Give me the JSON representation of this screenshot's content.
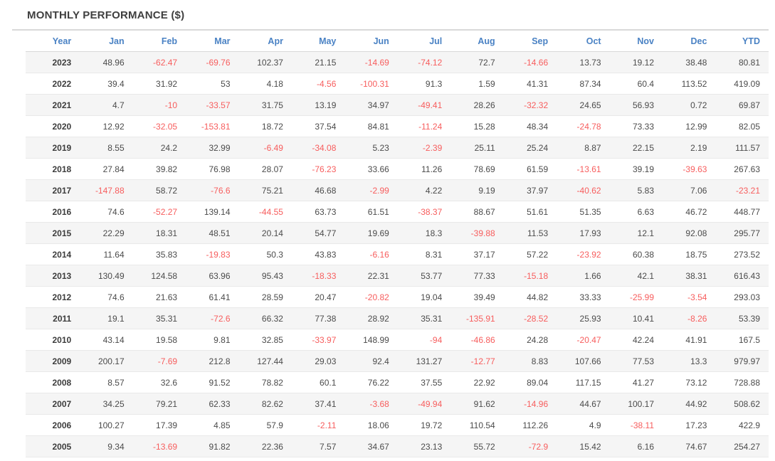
{
  "panel": {
    "title": "MONTHLY PERFORMANCE ($)"
  },
  "colors": {
    "title_text": "#3f3f3f",
    "header_text": "#4a82c4",
    "positive_text": "#4b4b4b",
    "negative_text": "#f75d5d",
    "year_text": "#3c3c3c",
    "stripe": "#f5f5f5",
    "divider": "#d9d9d9"
  },
  "table": {
    "columns": [
      "Year",
      "Jan",
      "Feb",
      "Mar",
      "Apr",
      "May",
      "Jun",
      "Jul",
      "Aug",
      "Sep",
      "Oct",
      "Nov",
      "Dec",
      "YTD"
    ],
    "rows": [
      [
        "2023",
        "48.96",
        "-62.47",
        "-69.76",
        "102.37",
        "21.15",
        "-14.69",
        "-74.12",
        "72.7",
        "-14.66",
        "13.73",
        "19.12",
        "38.48",
        "80.81"
      ],
      [
        "2022",
        "39.4",
        "31.92",
        "53",
        "4.18",
        "-4.56",
        "-100.31",
        "91.3",
        "1.59",
        "41.31",
        "87.34",
        "60.4",
        "113.52",
        "419.09"
      ],
      [
        "2021",
        "4.7",
        "-10",
        "-33.57",
        "31.75",
        "13.19",
        "34.97",
        "-49.41",
        "28.26",
        "-32.32",
        "24.65",
        "56.93",
        "0.72",
        "69.87"
      ],
      [
        "2020",
        "12.92",
        "-32.05",
        "-153.81",
        "18.72",
        "37.54",
        "84.81",
        "-11.24",
        "15.28",
        "48.34",
        "-24.78",
        "73.33",
        "12.99",
        "82.05"
      ],
      [
        "2019",
        "8.55",
        "24.2",
        "32.99",
        "-6.49",
        "-34.08",
        "5.23",
        "-2.39",
        "25.11",
        "25.24",
        "8.87",
        "22.15",
        "2.19",
        "111.57"
      ],
      [
        "2018",
        "27.84",
        "39.82",
        "76.98",
        "28.07",
        "-76.23",
        "33.66",
        "11.26",
        "78.69",
        "61.59",
        "-13.61",
        "39.19",
        "-39.63",
        "267.63"
      ],
      [
        "2017",
        "-147.88",
        "58.72",
        "-76.6",
        "75.21",
        "46.68",
        "-2.99",
        "4.22",
        "9.19",
        "37.97",
        "-40.62",
        "5.83",
        "7.06",
        "-23.21"
      ],
      [
        "2016",
        "74.6",
        "-52.27",
        "139.14",
        "-44.55",
        "63.73",
        "61.51",
        "-38.37",
        "88.67",
        "51.61",
        "51.35",
        "6.63",
        "46.72",
        "448.77"
      ],
      [
        "2015",
        "22.29",
        "18.31",
        "48.51",
        "20.14",
        "54.77",
        "19.69",
        "18.3",
        "-39.88",
        "11.53",
        "17.93",
        "12.1",
        "92.08",
        "295.77"
      ],
      [
        "2014",
        "11.64",
        "35.83",
        "-19.83",
        "50.3",
        "43.83",
        "-6.16",
        "8.31",
        "37.17",
        "57.22",
        "-23.92",
        "60.38",
        "18.75",
        "273.52"
      ],
      [
        "2013",
        "130.49",
        "124.58",
        "63.96",
        "95.43",
        "-18.33",
        "22.31",
        "53.77",
        "77.33",
        "-15.18",
        "1.66",
        "42.1",
        "38.31",
        "616.43"
      ],
      [
        "2012",
        "74.6",
        "21.63",
        "61.41",
        "28.59",
        "20.47",
        "-20.82",
        "19.04",
        "39.49",
        "44.82",
        "33.33",
        "-25.99",
        "-3.54",
        "293.03"
      ],
      [
        "2011",
        "19.1",
        "35.31",
        "-72.6",
        "66.32",
        "77.38",
        "28.92",
        "35.31",
        "-135.91",
        "-28.52",
        "25.93",
        "10.41",
        "-8.26",
        "53.39"
      ],
      [
        "2010",
        "43.14",
        "19.58",
        "9.81",
        "32.85",
        "-33.97",
        "148.99",
        "-94",
        "-46.86",
        "24.28",
        "-20.47",
        "42.24",
        "41.91",
        "167.5"
      ],
      [
        "2009",
        "200.17",
        "-7.69",
        "212.8",
        "127.44",
        "29.03",
        "92.4",
        "131.27",
        "-12.77",
        "8.83",
        "107.66",
        "77.53",
        "13.3",
        "979.97"
      ],
      [
        "2008",
        "8.57",
        "32.6",
        "91.52",
        "78.82",
        "60.1",
        "76.22",
        "37.55",
        "22.92",
        "89.04",
        "117.15",
        "41.27",
        "73.12",
        "728.88"
      ],
      [
        "2007",
        "34.25",
        "79.21",
        "62.33",
        "82.62",
        "37.41",
        "-3.68",
        "-49.94",
        "91.62",
        "-14.96",
        "44.67",
        "100.17",
        "44.92",
        "508.62"
      ],
      [
        "2006",
        "100.27",
        "17.39",
        "4.85",
        "57.9",
        "-2.11",
        "18.06",
        "19.72",
        "110.54",
        "112.26",
        "4.9",
        "-38.11",
        "17.23",
        "422.9"
      ],
      [
        "2005",
        "9.34",
        "-13.69",
        "91.82",
        "22.36",
        "7.57",
        "34.67",
        "23.13",
        "55.72",
        "-72.9",
        "15.42",
        "6.16",
        "74.67",
        "254.27"
      ]
    ]
  }
}
